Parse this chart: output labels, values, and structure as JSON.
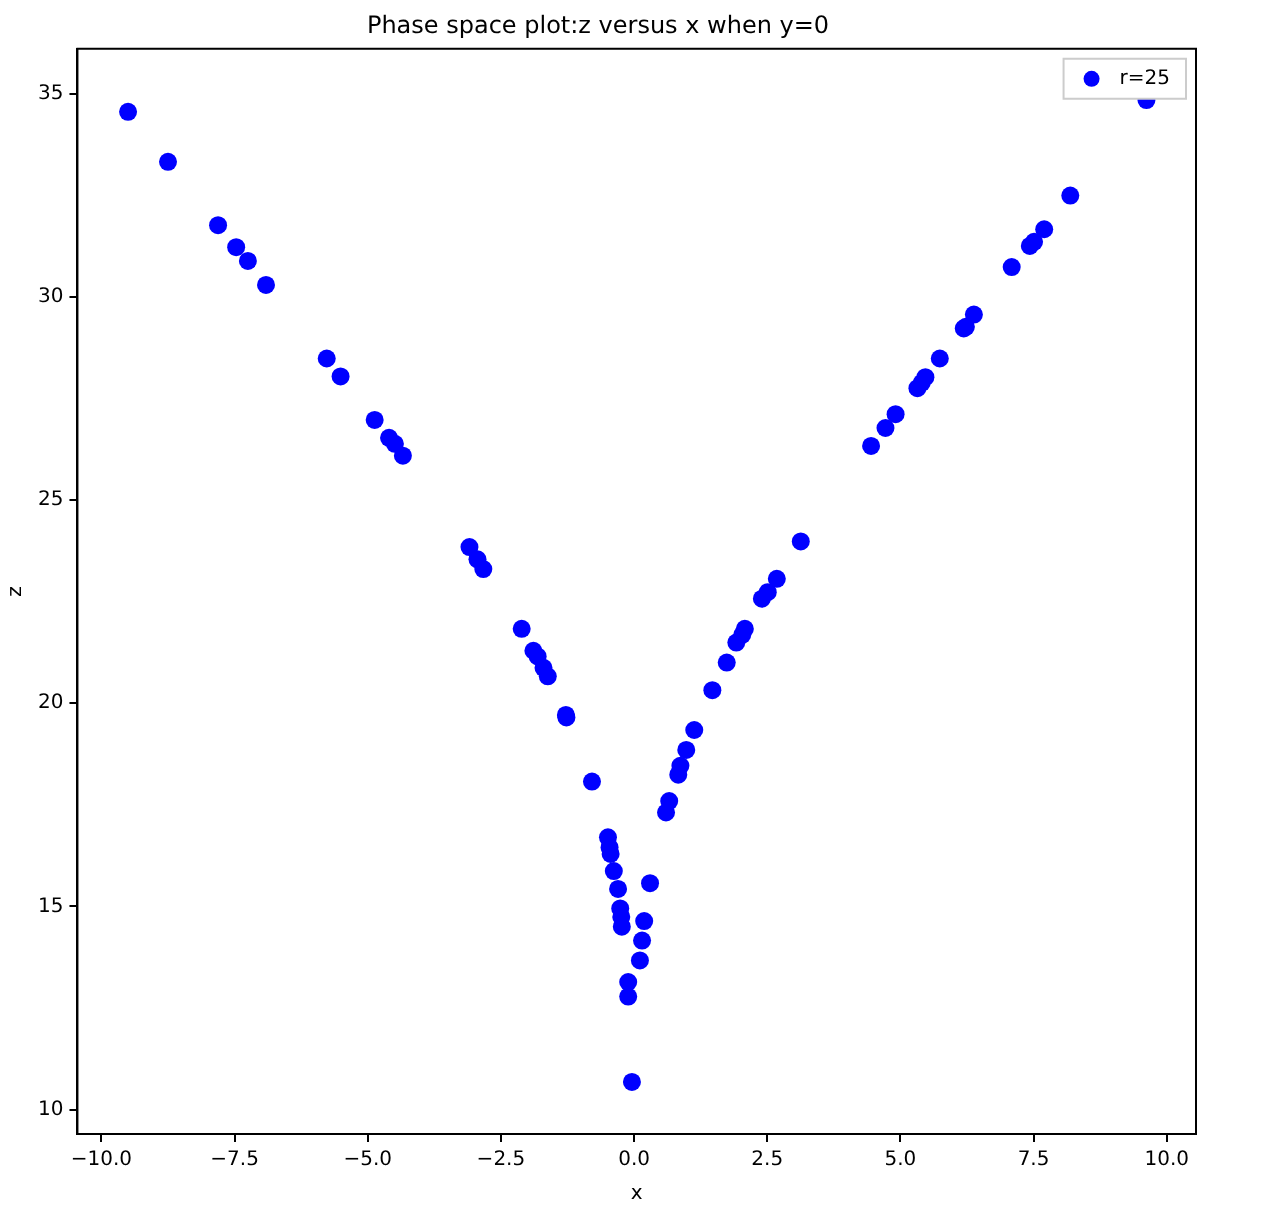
{
  "chart_data": {
    "type": "scatter",
    "title": "Phase space plot:z versus x when y=0",
    "xlabel": "x",
    "ylabel": "z",
    "xlim": [
      -10.45,
      10.55
    ],
    "ylim": [
      9.4,
      36.1
    ],
    "xticks": [
      {
        "value": -10,
        "label": "−10.0"
      },
      {
        "value": -7.5,
        "label": "−7.5"
      },
      {
        "value": -5,
        "label": "−5.0"
      },
      {
        "value": -2.5,
        "label": "−2.5"
      },
      {
        "value": 0,
        "label": "0.0"
      },
      {
        "value": 2.5,
        "label": "2.5"
      },
      {
        "value": 5,
        "label": "5.0"
      },
      {
        "value": 7.5,
        "label": "7.5"
      },
      {
        "value": 10,
        "label": "10.0"
      }
    ],
    "yticks": [
      10,
      15,
      20,
      25,
      30,
      35
    ],
    "grid": false,
    "legend": "top right",
    "marker": "circle",
    "series": [
      {
        "name": "r=25",
        "color": "#0000ff",
        "x": [
          -9.5,
          -8.75,
          -7.81,
          -7.47,
          -7.25,
          -6.91,
          -5.77,
          -5.51,
          -4.87,
          -4.6,
          -4.49,
          -4.34,
          -3.09,
          -2.94,
          -2.83,
          -2.11,
          -1.89,
          -1.81,
          -1.7,
          -1.62,
          -1.28,
          -1.27,
          -0.79,
          -0.49,
          -0.46,
          -0.44,
          -0.38,
          -0.3,
          -0.26,
          -0.24,
          -0.23,
          -0.11,
          -0.11,
          -0.04,
          0.11,
          0.15,
          0.19,
          0.3,
          0.6,
          0.66,
          0.83,
          0.87,
          0.98,
          1.13,
          1.47,
          1.74,
          1.92,
          2.03,
          2.08,
          2.4,
          2.51,
          2.68,
          3.13,
          4.45,
          4.72,
          4.91,
          5.32,
          5.4,
          5.47,
          5.74,
          6.19,
          6.23,
          6.38,
          7.09,
          7.43,
          7.51,
          7.7,
          8.19,
          9.62
        ],
        "values": [
          34.55,
          33.32,
          31.76,
          31.22,
          30.88,
          30.29,
          28.48,
          28.04,
          26.97,
          26.53,
          26.38,
          26.09,
          23.84,
          23.54,
          23.3,
          21.83,
          21.29,
          21.15,
          20.87,
          20.66,
          19.71,
          19.65,
          18.07,
          16.7,
          16.45,
          16.29,
          15.87,
          15.43,
          14.95,
          14.74,
          14.5,
          13.14,
          12.78,
          10.68,
          13.67,
          14.16,
          14.64,
          15.57,
          17.31,
          17.59,
          18.24,
          18.46,
          18.85,
          19.34,
          20.32,
          21.0,
          21.49,
          21.68,
          21.83,
          22.57,
          22.73,
          23.06,
          23.98,
          26.33,
          26.77,
          27.11,
          27.75,
          27.88,
          28.02,
          28.48,
          29.22,
          29.26,
          29.56,
          30.73,
          31.25,
          31.35,
          31.66,
          32.49,
          34.84
        ]
      }
    ]
  }
}
